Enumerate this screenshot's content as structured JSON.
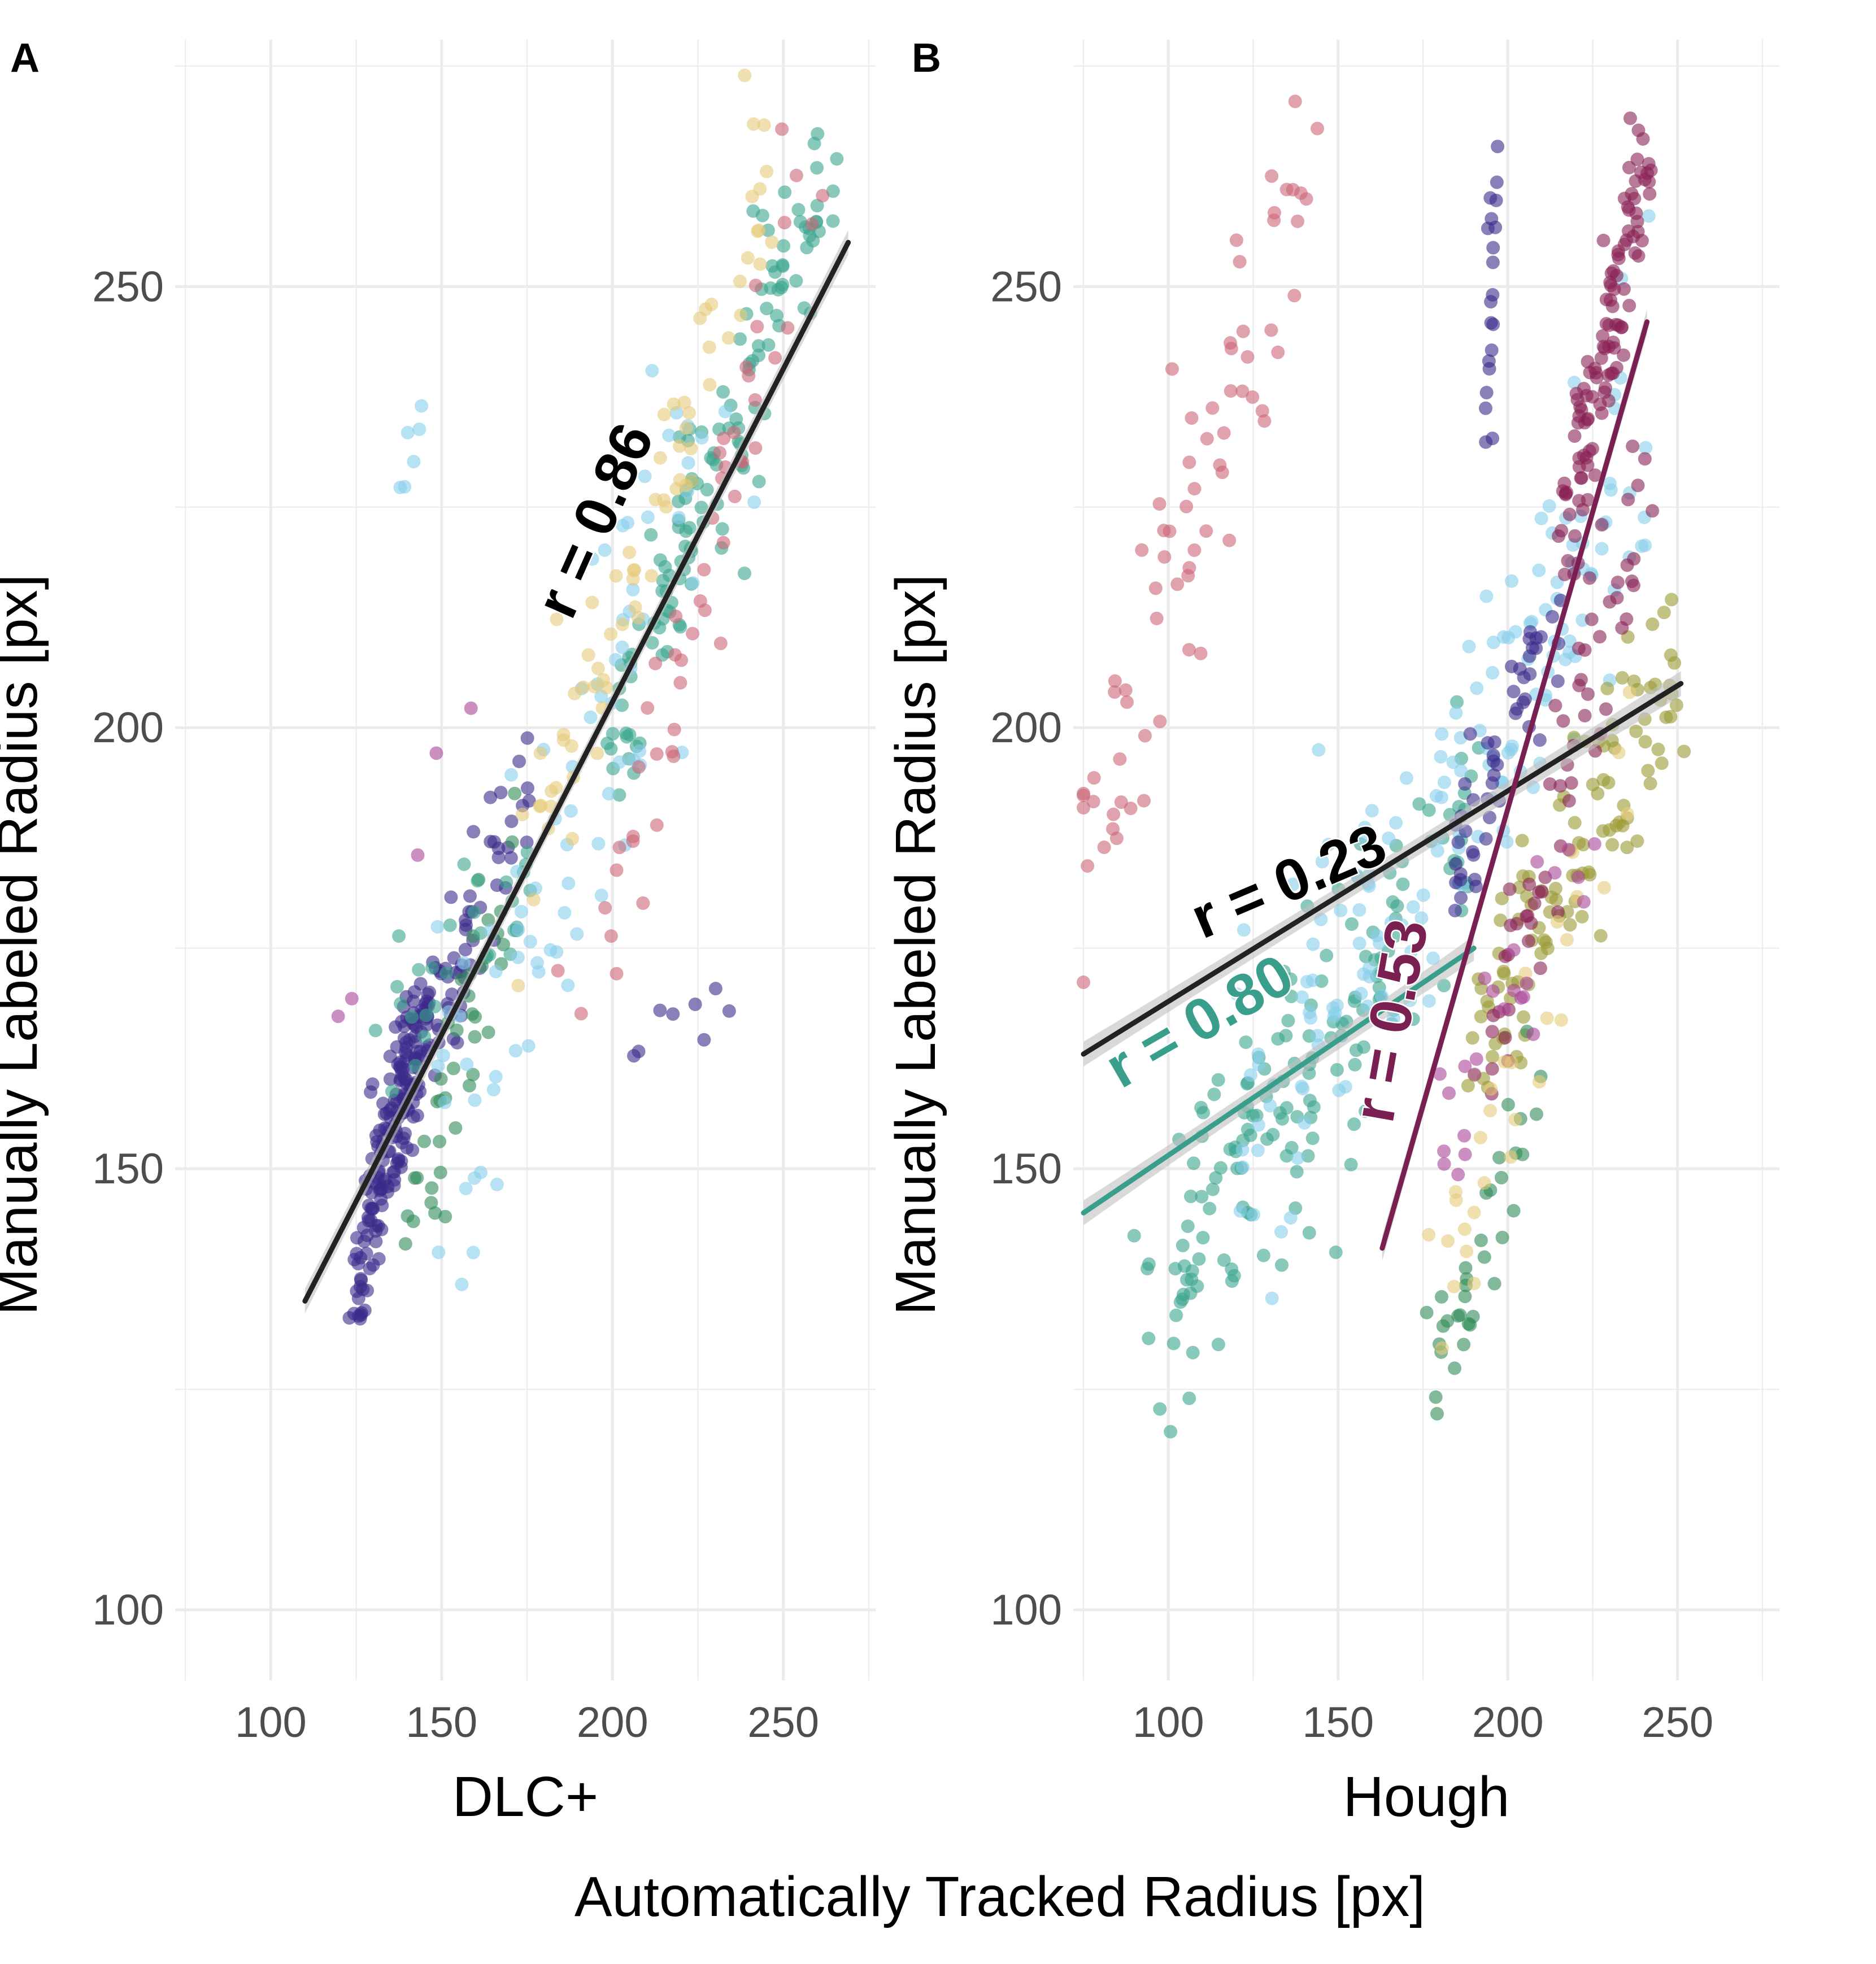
{
  "figure": {
    "shared_xlabel": "Automatically Tracked Radius [px]",
    "colors": {
      "grid": "#ebebeb",
      "fit_black": "#222222",
      "fit_teal": "#3a9e8c",
      "fit_maroon": "#7a1f52",
      "ribbon": "#bfbfbf",
      "tick_text": "#4d4d4d",
      "groups": [
        "#3b2a8a",
        "#2e8b57",
        "#3aa58d",
        "#87ceeb",
        "#e6c97a",
        "#cc6677",
        "#aa4499",
        "#999933",
        "#882255"
      ]
    }
  },
  "chart_data": [
    {
      "panel": "A",
      "type": "scatter",
      "xlabel": "DLC+",
      "ylabel": "Manually Labeled Radius [px]",
      "xlim": [
        72,
        277
      ],
      "ylim": [
        92,
        278
      ],
      "xticks": [
        100,
        150,
        200,
        250
      ],
      "yticks": [
        100,
        150,
        200,
        250
      ],
      "grid": true,
      "annotations": [
        {
          "text": "r = 0.86",
          "x": 188,
          "y": 212,
          "color": "#000000",
          "angle": -66
        }
      ],
      "fits": [
        {
          "x": [
            110,
            269
          ],
          "y": [
            135,
            255
          ],
          "color": "#222222",
          "ribbon": true
        }
      ]
    },
    {
      "panel": "B",
      "type": "scatter",
      "xlabel": "Hough",
      "ylabel": "Manually Labeled Radius [px]",
      "xlim": [
        72,
        280
      ],
      "ylim": [
        92,
        278
      ],
      "xticks": [
        100,
        150,
        200,
        250
      ],
      "yticks": [
        100,
        150,
        200,
        250
      ],
      "grid": true,
      "annotations": [
        {
          "text": "r = 0.23",
          "x": 110,
          "y": 176,
          "color": "#000000",
          "angle": -23
        },
        {
          "text": "r = 0.80",
          "x": 86,
          "y": 159,
          "color": "#3a9e8c",
          "angle": -30
        },
        {
          "text": "r = 0.53",
          "x": 166,
          "y": 155,
          "color": "#7a1f52",
          "angle": -80
        }
      ],
      "fits": [
        {
          "x": [
            75,
            251
          ],
          "y": [
            163,
            205
          ],
          "color": "#222222",
          "ribbon": true
        },
        {
          "x": [
            75,
            190
          ],
          "y": [
            145,
            175
          ],
          "color": "#3a9e8c",
          "ribbon": true
        },
        {
          "x": [
            163,
            241
          ],
          "y": [
            141,
            246
          ],
          "color": "#7a1f52",
          "ribbon": true
        }
      ]
    }
  ]
}
